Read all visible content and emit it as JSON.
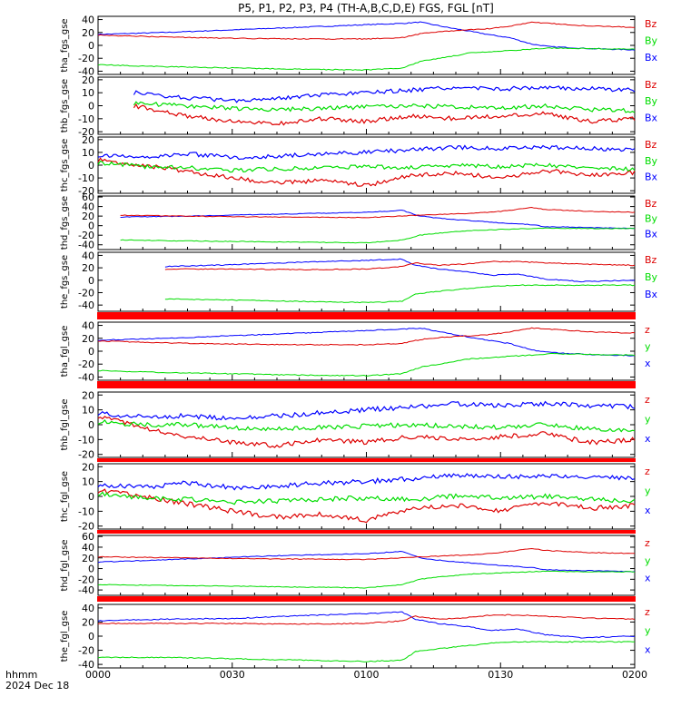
{
  "title": "P5, P1, P2, P3, P4 (TH-A,B,C,D,E) FGS, FGL [nT]",
  "x_axis": {
    "ticks": [
      "0000",
      "0030",
      "0100",
      "0130",
      "0200"
    ],
    "corner_label": "hhmm",
    "date_label": "2024 Dec 18"
  },
  "colors": {
    "x": "#0000ff",
    "y": "#00dd00",
    "z": "#dd0000",
    "flag": "#ff0000"
  },
  "chart_data": [
    {
      "type": "line",
      "ylabel": "tha_fgs_gse",
      "yticks": [
        40,
        20,
        0,
        -20,
        -40
      ],
      "ylim": [
        -45,
        45
      ],
      "legend": [
        "Bz",
        "By",
        "Bx"
      ],
      "x": [
        0,
        5,
        15,
        30,
        45,
        60,
        68,
        72,
        78,
        83,
        88,
        92,
        97,
        101,
        110,
        120
      ],
      "series": [
        {
          "name": "Bx",
          "values": [
            17,
            18,
            20,
            24,
            28,
            32,
            34,
            36,
            28,
            22,
            16,
            12,
            2,
            -2,
            -5,
            -7
          ]
        },
        {
          "name": "By",
          "values": [
            -30,
            -31,
            -33,
            -35,
            -37,
            -38,
            -35,
            -25,
            -18,
            -12,
            -10,
            -8,
            -6,
            -4,
            -5,
            -6
          ]
        },
        {
          "name": "Bz",
          "values": [
            16,
            15,
            13,
            11,
            10,
            10,
            12,
            18,
            22,
            24,
            26,
            30,
            36,
            34,
            30,
            28
          ]
        }
      ]
    },
    {
      "type": "line",
      "ylabel": "thb_fgs_gse",
      "yticks": [
        20,
        10,
        0,
        -10,
        -20
      ],
      "ylim": [
        -22,
        22
      ],
      "legend": [
        "Bz",
        "By",
        "Bx"
      ],
      "x": [
        8,
        20,
        30,
        40,
        50,
        60,
        70,
        80,
        90,
        100,
        110,
        120
      ],
      "series": [
        {
          "name": "Bx",
          "values": [
            10,
            6,
            4,
            6,
            8,
            10,
            12,
            14,
            13,
            14,
            13,
            12
          ]
        },
        {
          "name": "By",
          "values": [
            2,
            0,
            -2,
            -3,
            -2,
            -1,
            0,
            -1,
            -2,
            0,
            -3,
            -4
          ]
        },
        {
          "name": "Bz",
          "values": [
            0,
            -8,
            -12,
            -14,
            -10,
            -12,
            -8,
            -10,
            -8,
            -6,
            -12,
            -10
          ]
        }
      ]
    },
    {
      "type": "line",
      "ylabel": "thc_fgs_gse",
      "yticks": [
        20,
        10,
        0,
        -10,
        -20
      ],
      "ylim": [
        -22,
        22
      ],
      "legend": [
        "Bz",
        "By",
        "Bx"
      ],
      "x": [
        0,
        10,
        20,
        30,
        40,
        50,
        60,
        70,
        80,
        90,
        100,
        110,
        120
      ],
      "series": [
        {
          "name": "Bx",
          "values": [
            8,
            6,
            9,
            6,
            7,
            9,
            10,
            12,
            14,
            13,
            14,
            13,
            12
          ]
        },
        {
          "name": "By",
          "values": [
            2,
            -1,
            -2,
            -4,
            -3,
            -2,
            -1,
            -2,
            0,
            -1,
            0,
            -2,
            -3
          ]
        },
        {
          "name": "Bz",
          "values": [
            4,
            0,
            -5,
            -10,
            -14,
            -12,
            -16,
            -8,
            -6,
            -10,
            -4,
            -8,
            -6
          ]
        }
      ]
    },
    {
      "type": "line",
      "ylabel": "thd_fgs_gse",
      "yticks": [
        60,
        40,
        20,
        0,
        -20,
        -40
      ],
      "ylim": [
        -50,
        62
      ],
      "legend": [
        "Bz",
        "By",
        "Bx"
      ],
      "x": [
        5,
        20,
        40,
        60,
        68,
        72,
        78,
        84,
        90,
        97,
        100,
        110,
        120
      ],
      "series": [
        {
          "name": "Bx",
          "values": [
            18,
            20,
            24,
            28,
            32,
            20,
            14,
            10,
            6,
            2,
            -2,
            -4,
            -6
          ]
        },
        {
          "name": "By",
          "values": [
            -30,
            -32,
            -34,
            -36,
            -30,
            -20,
            -14,
            -10,
            -8,
            -6,
            -5,
            -6,
            -6
          ]
        },
        {
          "name": "Bz",
          "values": [
            22,
            20,
            18,
            17,
            20,
            22,
            24,
            26,
            30,
            38,
            34,
            30,
            28
          ]
        }
      ]
    },
    {
      "type": "line",
      "ylabel": "the_fgs_gse",
      "yticks": [
        40,
        20,
        0,
        -20,
        -40
      ],
      "ylim": [
        -50,
        45
      ],
      "legend": [
        "Bz",
        "By",
        "Bx"
      ],
      "x": [
        15,
        30,
        45,
        60,
        68,
        71,
        76,
        82,
        88,
        94,
        100,
        108,
        120
      ],
      "series": [
        {
          "name": "Bx",
          "values": [
            22,
            25,
            29,
            32,
            34,
            24,
            18,
            14,
            8,
            10,
            2,
            -2,
            0
          ]
        },
        {
          "name": "By",
          "values": [
            -30,
            -32,
            -34,
            -36,
            -34,
            -22,
            -18,
            -14,
            -10,
            -8,
            -8,
            -8,
            -8
          ]
        },
        {
          "name": "Bz",
          "values": [
            18,
            18,
            17,
            18,
            22,
            28,
            24,
            26,
            30,
            30,
            28,
            26,
            24
          ]
        }
      ]
    },
    {
      "type": "line",
      "ylabel": "tha_fgl_gse",
      "yticks": [
        40,
        20,
        0,
        -20,
        -40
      ],
      "ylim": [
        -45,
        45
      ],
      "legend": [
        "z",
        "y",
        "x"
      ],
      "x": [
        0,
        5,
        15,
        30,
        45,
        60,
        68,
        72,
        78,
        83,
        88,
        92,
        97,
        101,
        110,
        120
      ],
      "series": [
        {
          "name": "x",
          "values": [
            17,
            18,
            20,
            24,
            28,
            32,
            34,
            36,
            28,
            22,
            16,
            12,
            2,
            -2,
            -5,
            -7
          ]
        },
        {
          "name": "y",
          "values": [
            -30,
            -31,
            -33,
            -35,
            -37,
            -38,
            -35,
            -25,
            -18,
            -12,
            -10,
            -8,
            -6,
            -4,
            -5,
            -6
          ]
        },
        {
          "name": "z",
          "values": [
            16,
            15,
            13,
            11,
            10,
            10,
            12,
            18,
            22,
            24,
            26,
            30,
            36,
            34,
            30,
            28
          ]
        }
      ]
    },
    {
      "type": "line",
      "ylabel": "thb_fgl_gse",
      "yticks": [
        20,
        10,
        0,
        -10,
        -20
      ],
      "ylim": [
        -22,
        22
      ],
      "legend": [
        "z",
        "y",
        "x"
      ],
      "x": [
        0,
        10,
        20,
        30,
        40,
        50,
        60,
        70,
        80,
        90,
        100,
        110,
        120
      ],
      "series": [
        {
          "name": "x",
          "values": [
            8,
            5,
            6,
            4,
            6,
            8,
            10,
            12,
            14,
            13,
            14,
            13,
            12
          ]
        },
        {
          "name": "y",
          "values": [
            2,
            0,
            0,
            -2,
            -3,
            -2,
            -1,
            0,
            -1,
            -2,
            0,
            -3,
            -4
          ]
        },
        {
          "name": "z",
          "values": [
            6,
            -2,
            -8,
            -12,
            -14,
            -10,
            -12,
            -8,
            -10,
            -8,
            -6,
            -12,
            -10
          ]
        }
      ]
    },
    {
      "type": "line",
      "ylabel": "thc_fgl_gse",
      "yticks": [
        20,
        10,
        0,
        -10,
        -20
      ],
      "ylim": [
        -22,
        22
      ],
      "legend": [
        "z",
        "y",
        "x"
      ],
      "x": [
        0,
        10,
        20,
        30,
        40,
        50,
        60,
        70,
        80,
        90,
        100,
        110,
        120
      ],
      "series": [
        {
          "name": "x",
          "values": [
            8,
            6,
            9,
            6,
            7,
            9,
            10,
            12,
            14,
            13,
            14,
            13,
            12
          ]
        },
        {
          "name": "y",
          "values": [
            2,
            -1,
            -2,
            -4,
            -3,
            -2,
            -1,
            -2,
            0,
            -1,
            0,
            -2,
            -3
          ]
        },
        {
          "name": "z",
          "values": [
            4,
            0,
            -5,
            -10,
            -14,
            -12,
            -16,
            -8,
            -6,
            -10,
            -4,
            -8,
            -6
          ]
        }
      ]
    },
    {
      "type": "line",
      "ylabel": "thd_fgl_gse",
      "yticks": [
        60,
        40,
        20,
        0,
        -20,
        -40
      ],
      "ylim": [
        -50,
        62
      ],
      "legend": [
        "z",
        "y",
        "x"
      ],
      "x": [
        0,
        20,
        40,
        60,
        68,
        72,
        78,
        84,
        90,
        97,
        100,
        110,
        120
      ],
      "series": [
        {
          "name": "x",
          "values": [
            12,
            18,
            24,
            28,
            32,
            20,
            14,
            10,
            6,
            2,
            -2,
            -4,
            -6
          ]
        },
        {
          "name": "y",
          "values": [
            -30,
            -32,
            -34,
            -36,
            -30,
            -20,
            -14,
            -10,
            -8,
            -6,
            -5,
            -6,
            -6
          ]
        },
        {
          "name": "z",
          "values": [
            22,
            20,
            18,
            17,
            20,
            22,
            24,
            26,
            30,
            38,
            34,
            30,
            28
          ]
        }
      ]
    },
    {
      "type": "line",
      "ylabel": "the_fgl_gse",
      "yticks": [
        40,
        20,
        0,
        -20,
        -40
      ],
      "ylim": [
        -45,
        45
      ],
      "legend": [
        "z",
        "y",
        "x"
      ],
      "x": [
        0,
        15,
        30,
        45,
        60,
        68,
        71,
        76,
        82,
        88,
        94,
        100,
        108,
        120
      ],
      "series": [
        {
          "name": "x",
          "values": [
            22,
            24,
            25,
            29,
            32,
            34,
            24,
            18,
            14,
            8,
            10,
            2,
            -2,
            0
          ]
        },
        {
          "name": "y",
          "values": [
            -30,
            -30,
            -32,
            -34,
            -36,
            -34,
            -22,
            -18,
            -14,
            -10,
            -8,
            -8,
            -8,
            -8
          ]
        },
        {
          "name": "z",
          "values": [
            18,
            18,
            18,
            17,
            18,
            22,
            28,
            24,
            26,
            30,
            30,
            28,
            26,
            24
          ]
        }
      ]
    }
  ]
}
